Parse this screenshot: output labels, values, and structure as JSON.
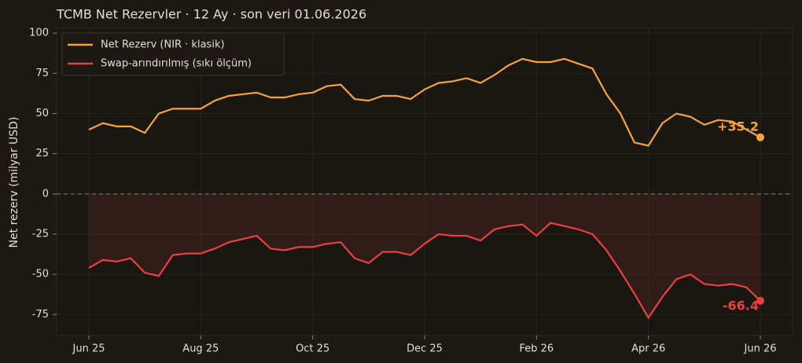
{
  "chart_data": {
    "type": "line",
    "title": "TCMB Net Rezervler · 12 Ay · son veri 01.06.2026",
    "y_label": "Net rezerv (milyar USD)",
    "categories": [
      "Jun 25",
      null,
      null,
      null,
      null,
      null,
      null,
      null,
      "Aug 25",
      null,
      null,
      null,
      null,
      null,
      null,
      null,
      "Oct 25",
      null,
      null,
      null,
      null,
      null,
      null,
      null,
      "Dec 25",
      null,
      null,
      null,
      null,
      null,
      null,
      null,
      "Feb 26",
      null,
      null,
      null,
      null,
      null,
      null,
      null,
      "Apr 26",
      null,
      null,
      null,
      null,
      null,
      null,
      null,
      "Jun 26"
    ],
    "series": [
      {
        "name": "Net Rezerv (NIR · klasik)",
        "color": "#f5a33a",
        "end_label": "+35.2",
        "values": [
          40,
          44,
          42,
          42,
          38,
          50,
          53,
          53,
          53,
          58,
          61,
          62,
          63,
          60,
          60,
          62,
          63,
          67,
          68,
          59,
          58,
          61,
          61,
          59,
          65,
          69,
          70,
          72,
          69,
          74,
          80,
          84,
          82,
          82,
          84,
          81,
          78,
          62,
          50,
          32,
          30,
          44,
          50,
          48,
          43,
          46,
          45,
          40,
          35.2
        ]
      },
      {
        "name": "Swap-arındırılmış (sıkı ölçüm)",
        "color": "#e8413f",
        "end_label": "-66.4",
        "values": [
          -46,
          -41,
          -42,
          -40,
          -49,
          -51,
          -38,
          -37,
          -37,
          -34,
          -30,
          -28,
          -26,
          -34,
          -35,
          -33,
          -33,
          -31,
          -30,
          -40,
          -43,
          -36,
          -36,
          -38,
          -31,
          -25,
          -26,
          -26,
          -29,
          -22,
          -20,
          -19,
          -26,
          -18,
          -20,
          -22,
          -25,
          -35,
          -48,
          -62,
          -77,
          -64,
          -53,
          -50,
          -56,
          -57,
          -56,
          -58,
          -66.4
        ]
      }
    ],
    "ylim": [
      -88,
      103
    ],
    "yticks": [
      -75,
      -50,
      -25,
      0,
      25,
      50,
      75,
      100
    ],
    "grid": true,
    "legend": "upper left"
  }
}
